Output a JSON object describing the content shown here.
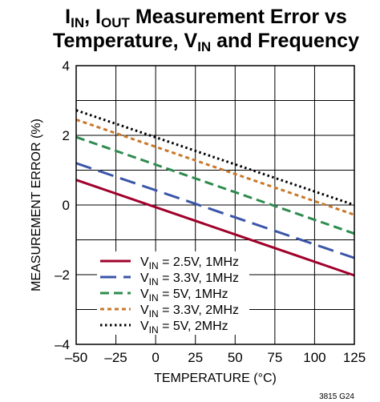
{
  "chart_data": {
    "type": "line",
    "title": {
      "line1_parts": [
        {
          "text": "I",
          "sub": "IN"
        },
        {
          "text": ", "
        },
        {
          "text": "I",
          "sub": "OUT"
        },
        {
          "text": " Measurement Error vs"
        }
      ],
      "line2_parts": [
        {
          "text": "Temperature, "
        },
        {
          "text": "V",
          "sub": "IN"
        },
        {
          "text": " and Frequency"
        }
      ]
    },
    "xlabel": "TEMPERATURE (°C)",
    "ylabel": "MEASUREMENT ERROR (%)",
    "xlim": [
      -50,
      125
    ],
    "ylim": [
      -4,
      4
    ],
    "xticks": [
      -50,
      -25,
      0,
      25,
      50,
      75,
      100,
      125
    ],
    "xtick_labels": [
      "–50",
      "–25",
      "0",
      "25",
      "50",
      "75",
      "100",
      "125"
    ],
    "yticks": [
      -4,
      -2,
      0,
      2,
      4
    ],
    "ytick_labels": [
      "–4",
      "–2",
      "0",
      "2",
      "4"
    ],
    "grid": true,
    "legend_position": "bottom-left",
    "series": [
      {
        "name_prefix": "V",
        "name_sub": "IN",
        "name_suffix": " = 2.5V, 1MHz",
        "color": "#a0002a",
        "style": "solid",
        "x": [
          -50,
          125
        ],
        "y": [
          0.72,
          -2.02
        ]
      },
      {
        "name_prefix": "V",
        "name_sub": "IN",
        "name_suffix": " = 3.3V, 1MHz",
        "color": "#3a55a8",
        "style": "long-dash",
        "x": [
          -50,
          125
        ],
        "y": [
          1.2,
          -1.52
        ]
      },
      {
        "name_prefix": "V",
        "name_sub": "IN",
        "name_suffix": " = 5V, 1MHz",
        "color": "#2e8b4e",
        "style": "dash",
        "x": [
          -50,
          125
        ],
        "y": [
          1.95,
          -0.82
        ]
      },
      {
        "name_prefix": "V",
        "name_sub": "IN",
        "name_suffix": " = 3.3V, 2MHz",
        "color": "#c8782a",
        "style": "short-dash",
        "x": [
          -50,
          125
        ],
        "y": [
          2.45,
          -0.28
        ]
      },
      {
        "name_prefix": "V",
        "name_sub": "IN",
        "name_suffix": " = 5V, 2MHz",
        "color": "#000000",
        "style": "dotted",
        "x": [
          -50,
          125
        ],
        "y": [
          2.72,
          0.0
        ]
      }
    ],
    "figure_code": "3815 G24"
  }
}
